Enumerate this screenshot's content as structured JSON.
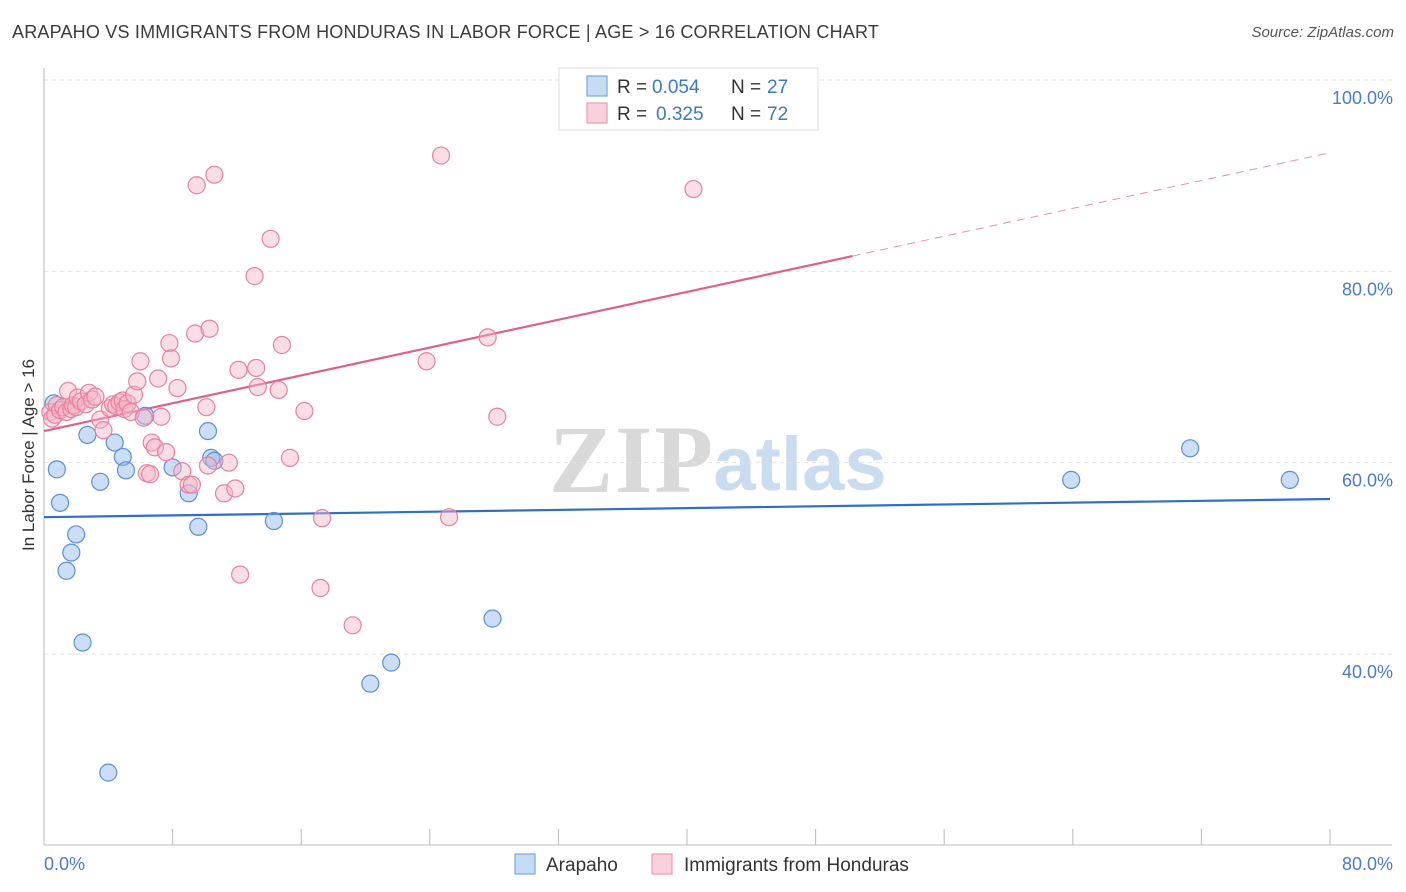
{
  "title": "ARAPAHO VS IMMIGRANTS FROM HONDURAS IN LABOR FORCE | AGE > 16 CORRELATION CHART",
  "source": "Source: ZipAtlas.com",
  "watermark": {
    "zip": "ZIP",
    "atlas": "atlas"
  },
  "chart_data": {
    "type": "scatter",
    "title": "ARAPAHO VS IMMIGRANTS FROM HONDURAS IN LABOR FORCE | AGE > 16 CORRELATION CHART",
    "ylabel": "In Labor Force | Age > 16",
    "xlabel": "",
    "xlim": [
      0,
      80
    ],
    "ylim": [
      20,
      100
    ],
    "x_tick_labels": [
      "0.0%",
      "80.0%"
    ],
    "y_ticks": [
      40,
      60,
      80,
      100
    ],
    "y_tick_labels": [
      "40.0%",
      "60.0%",
      "80.0%",
      "100.0%"
    ],
    "legend": {
      "r_label": "R =",
      "n_label": "N =",
      "entries": [
        {
          "r": "0.054",
          "n": "27"
        },
        {
          "r": "0.325",
          "n": "72"
        }
      ]
    },
    "series": [
      {
        "name": "Arapaho",
        "color": "#8db6e8",
        "edge": "#5b8fd4",
        "line_color": "#2f6fc4",
        "trend": {
          "x0": 0,
          "y0": 54.3,
          "x1": 80,
          "y1": 56.2,
          "solid_until": 80
        },
        "points": [
          [
            0.6,
            66.2
          ],
          [
            0.8,
            59.3
          ],
          [
            1.0,
            55.8
          ],
          [
            1.4,
            48.7
          ],
          [
            1.7,
            50.6
          ],
          [
            2.0,
            52.5
          ],
          [
            2.4,
            41.2
          ],
          [
            2.7,
            62.9
          ],
          [
            3.5,
            58.0
          ],
          [
            4.0,
            27.6
          ],
          [
            4.4,
            62.1
          ],
          [
            4.9,
            60.6
          ],
          [
            5.1,
            59.2
          ],
          [
            6.3,
            64.9
          ],
          [
            8.0,
            59.5
          ],
          [
            9.0,
            56.8
          ],
          [
            9.6,
            53.3
          ],
          [
            10.2,
            63.3
          ],
          [
            10.4,
            60.5
          ],
          [
            10.6,
            60.2
          ],
          [
            14.3,
            53.9
          ],
          [
            20.3,
            36.9
          ],
          [
            21.6,
            39.1
          ],
          [
            27.9,
            43.7
          ],
          [
            63.9,
            58.2
          ],
          [
            71.3,
            61.5
          ],
          [
            77.5,
            58.2
          ]
        ]
      },
      {
        "name": "Immigrants from Honduras",
        "color": "#f5b5c8",
        "edge": "#e8809f",
        "line_color": "#e0608a",
        "trend": {
          "x0": 0,
          "y0": 63.3,
          "x1": 80,
          "y1": 92.4,
          "solid_until": 50.3
        },
        "points": [
          [
            0.4,
            65.3
          ],
          [
            0.5,
            64.6
          ],
          [
            0.7,
            65.0
          ],
          [
            0.8,
            66.0
          ],
          [
            1.0,
            65.5
          ],
          [
            1.2,
            65.8
          ],
          [
            1.4,
            65.3
          ],
          [
            1.5,
            67.5
          ],
          [
            1.7,
            65.6
          ],
          [
            1.8,
            66.0
          ],
          [
            2.0,
            65.8
          ],
          [
            2.1,
            66.8
          ],
          [
            2.3,
            66.4
          ],
          [
            2.6,
            66.1
          ],
          [
            2.8,
            67.3
          ],
          [
            3.0,
            66.6
          ],
          [
            3.2,
            66.9
          ],
          [
            3.5,
            64.5
          ],
          [
            3.7,
            63.4
          ],
          [
            4.1,
            65.7
          ],
          [
            4.3,
            66.1
          ],
          [
            4.5,
            65.9
          ],
          [
            4.7,
            66.3
          ],
          [
            4.9,
            66.5
          ],
          [
            5.0,
            65.6
          ],
          [
            5.2,
            66.2
          ],
          [
            5.4,
            65.3
          ],
          [
            5.6,
            67.1
          ],
          [
            5.8,
            68.5
          ],
          [
            6.0,
            70.6
          ],
          [
            6.2,
            64.7
          ],
          [
            6.4,
            58.9
          ],
          [
            6.6,
            58.8
          ],
          [
            6.7,
            62.1
          ],
          [
            6.9,
            61.6
          ],
          [
            7.1,
            68.8
          ],
          [
            7.3,
            64.8
          ],
          [
            7.6,
            61.1
          ],
          [
            7.8,
            72.5
          ],
          [
            7.9,
            70.9
          ],
          [
            8.3,
            67.8
          ],
          [
            8.6,
            59.1
          ],
          [
            9.0,
            57.7
          ],
          [
            9.2,
            57.7
          ],
          [
            9.4,
            73.5
          ],
          [
            9.5,
            89.0
          ],
          [
            10.1,
            65.8
          ],
          [
            10.2,
            59.7
          ],
          [
            10.3,
            74.0
          ],
          [
            10.6,
            90.1
          ],
          [
            11.2,
            56.8
          ],
          [
            11.5,
            60.0
          ],
          [
            11.9,
            57.3
          ],
          [
            12.1,
            69.7
          ],
          [
            12.2,
            48.3
          ],
          [
            13.1,
            79.5
          ],
          [
            13.2,
            69.9
          ],
          [
            13.3,
            67.9
          ],
          [
            14.1,
            83.4
          ],
          [
            14.6,
            67.6
          ],
          [
            14.8,
            72.3
          ],
          [
            15.3,
            60.5
          ],
          [
            16.2,
            65.4
          ],
          [
            17.3,
            54.2
          ],
          [
            17.2,
            46.9
          ],
          [
            19.2,
            43.0
          ],
          [
            23.8,
            70.6
          ],
          [
            24.7,
            92.1
          ],
          [
            25.2,
            54.3
          ],
          [
            27.6,
            73.1
          ],
          [
            28.2,
            64.8
          ],
          [
            40.4,
            88.6
          ]
        ]
      }
    ]
  },
  "bottom_legend": [
    "Arapaho",
    "Immigrants from Honduras"
  ]
}
